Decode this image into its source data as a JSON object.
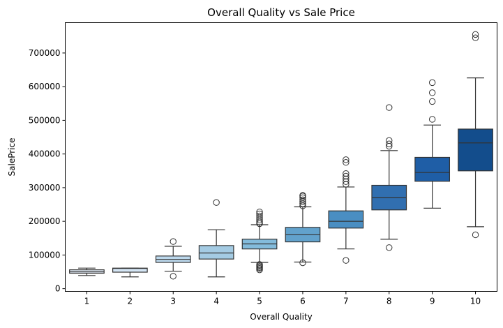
{
  "chart_data": {
    "type": "box",
    "title": "Overall Quality vs Sale Price",
    "xlabel": "Overall Quality",
    "ylabel": "SalePrice",
    "ylim": [
      -8000,
      790000
    ],
    "yticks": [
      0,
      100000,
      200000,
      300000,
      400000,
      500000,
      600000,
      700000
    ],
    "ytick_labels": [
      "0",
      "100000",
      "200000",
      "300000",
      "400000",
      "500000",
      "600000",
      "700000"
    ],
    "grid": false,
    "legend": "none",
    "categories": [
      "1",
      "2",
      "3",
      "4",
      "5",
      "6",
      "7",
      "8",
      "9",
      "10"
    ],
    "boxes": [
      {
        "category": "1",
        "whisker_low": 39000,
        "q1": 46000,
        "median": 50000,
        "q3": 56000,
        "whisker_high": 61000,
        "fliers": []
      },
      {
        "category": "2",
        "whisker_low": 35000,
        "q1": 49000,
        "median": 60000,
        "q3": 61000,
        "whisker_high": 61000,
        "fliers": []
      },
      {
        "category": "3",
        "whisker_low": 52000,
        "q1": 78000,
        "median": 87000,
        "q3": 97000,
        "whisker_high": 126000,
        "fliers": [
          37000,
          140000
        ]
      },
      {
        "category": "4",
        "whisker_low": 35000,
        "q1": 88000,
        "median": 106000,
        "q3": 128000,
        "whisker_high": 175000,
        "fliers": [
          256000
        ]
      },
      {
        "category": "5",
        "whisker_low": 78000,
        "q1": 118000,
        "median": 133000,
        "q3": 147000,
        "whisker_high": 190000,
        "fliers": [
          56000,
          60000,
          63000,
          66000,
          69000,
          72000,
          193000,
          198000,
          204000,
          210000,
          216000,
          222000,
          228000
        ]
      },
      {
        "category": "6",
        "whisker_low": 79000,
        "q1": 139000,
        "median": 160000,
        "q3": 182000,
        "whisker_high": 243000,
        "fliers": [
          77000,
          246000,
          252000,
          258000,
          264000,
          270000,
          275000,
          277000
        ]
      },
      {
        "category": "7",
        "whisker_low": 118000,
        "q1": 180000,
        "median": 200000,
        "q3": 231000,
        "whisker_high": 302000,
        "fliers": [
          84000,
          310000,
          318000,
          326000,
          334000,
          342000,
          375000,
          383000
        ]
      },
      {
        "category": "8",
        "whisker_low": 147000,
        "q1": 234000,
        "median": 270000,
        "q3": 307000,
        "whisker_high": 410000,
        "fliers": [
          122000,
          423000,
          430000,
          440000,
          538000
        ]
      },
      {
        "category": "9",
        "whisker_low": 239000,
        "q1": 319000,
        "median": 345000,
        "q3": 390000,
        "whisker_high": 486000,
        "fliers": [
          503000,
          556000,
          582000,
          612000
        ]
      },
      {
        "category": "10",
        "whisker_low": 184000,
        "q1": 350000,
        "median": 433000,
        "q3": 474000,
        "whisker_high": 626000,
        "fliers": [
          160000,
          745000,
          755000
        ]
      }
    ],
    "colors": [
      "#e4eef9",
      "#d4e5f4",
      "#bcd8ec",
      "#a4cbe3",
      "#83bbdb",
      "#62a2cc",
      "#4a8ec2",
      "#316fb0",
      "#1f5ea6",
      "#134d8c"
    ],
    "edge_color": "#333333"
  }
}
